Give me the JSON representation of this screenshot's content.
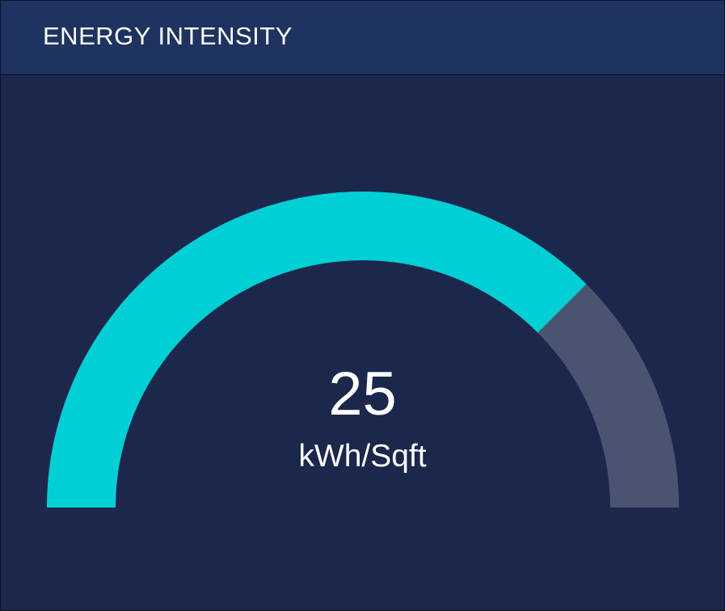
{
  "widget": {
    "title": "ENERGY INTENSITY",
    "value": "25",
    "unit": "kWh/Sqft"
  },
  "gauge": {
    "fill_fraction": 0.75,
    "fill_color": "#00cfd6",
    "track_color": "#4a5370",
    "background_color": "#1c274c",
    "header_color": "#1f3360"
  }
}
